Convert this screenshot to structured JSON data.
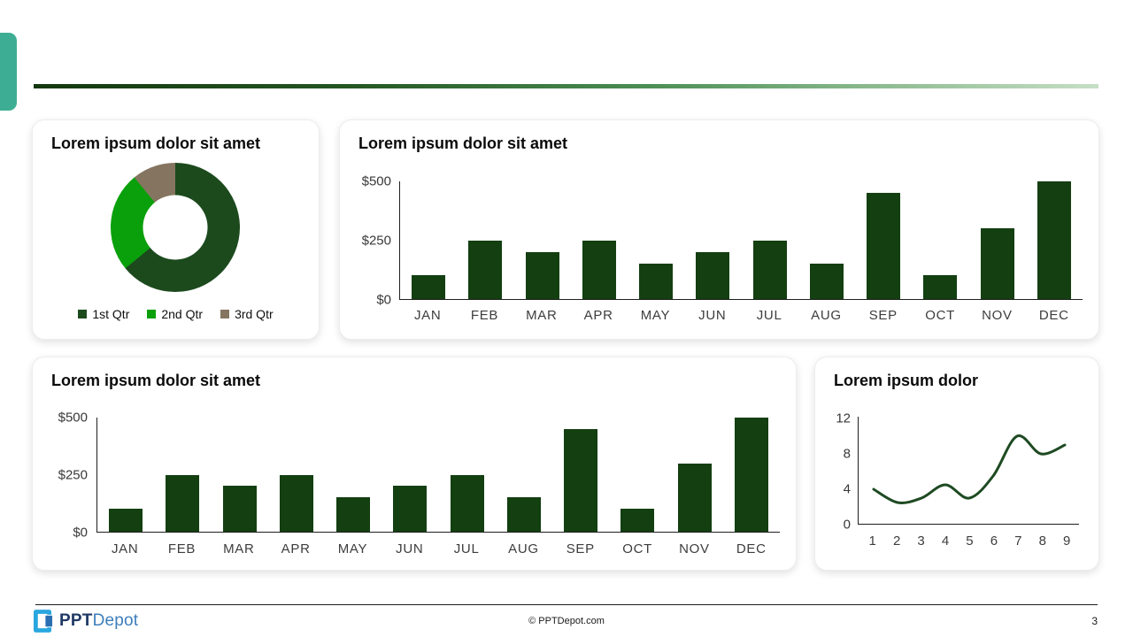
{
  "theme": {
    "accent_tab_color": "#3DAE93",
    "divider_gradient_from": "#14380F",
    "divider_gradient_to": "#C6DFC5",
    "card_background": "#FFFFFF"
  },
  "chart_data": [
    {
      "type": "pie",
      "subtype": "donut",
      "title": "Lorem ipsum dolor sit amet",
      "labels": [
        "1st Qtr",
        "2nd Qtr",
        "3rd Qtr"
      ],
      "values": [
        8.2,
        3.2,
        1.4
      ],
      "percents": [
        64,
        25,
        11
      ],
      "colors": [
        "#1C4A1D",
        "#0AA00B",
        "#857560"
      ],
      "legend_position": "bottom"
    },
    {
      "type": "bar",
      "title": "Lorem ipsum dolor sit amet",
      "categories": [
        "JAN",
        "FEB",
        "MAR",
        "APR",
        "MAY",
        "JUN",
        "JUL",
        "AUG",
        "SEP",
        "OCT",
        "NOV",
        "DEC"
      ],
      "values": [
        100,
        250,
        200,
        250,
        150,
        200,
        250,
        150,
        450,
        100,
        300,
        500
      ],
      "yticks": [
        "$0",
        "$250",
        "$500"
      ],
      "ylim": [
        0,
        500
      ],
      "bar_color": "#133F11",
      "grid": false
    },
    {
      "type": "bar",
      "title": "Lorem ipsum dolor sit amet",
      "categories": [
        "JAN",
        "FEB",
        "MAR",
        "APR",
        "MAY",
        "JUN",
        "JUL",
        "AUG",
        "SEP",
        "OCT",
        "NOV",
        "DEC"
      ],
      "values": [
        100,
        250,
        200,
        250,
        150,
        200,
        250,
        150,
        450,
        100,
        300,
        500
      ],
      "yticks": [
        "$0",
        "$250",
        "$500"
      ],
      "ylim": [
        0,
        500
      ],
      "bar_color": "#133F11",
      "grid": false
    },
    {
      "type": "line",
      "title": "Lorem ipsum dolor",
      "x": [
        1,
        2,
        3,
        4,
        5,
        6,
        7,
        8,
        9
      ],
      "values": [
        4,
        2.5,
        3,
        4.5,
        3,
        5.5,
        10,
        8,
        9
      ],
      "yticks": [
        "0",
        "4",
        "8",
        "12"
      ],
      "ytick_values": [
        0,
        4,
        8,
        12
      ],
      "ylim": [
        0,
        12
      ],
      "line_color": "#1E4A22",
      "smooth": true,
      "grid": false
    }
  ],
  "footer": {
    "logo_text_bold": "PPT",
    "logo_text_light": "Depot",
    "copyright": "© PPTDepot.com",
    "page_number": "3"
  }
}
